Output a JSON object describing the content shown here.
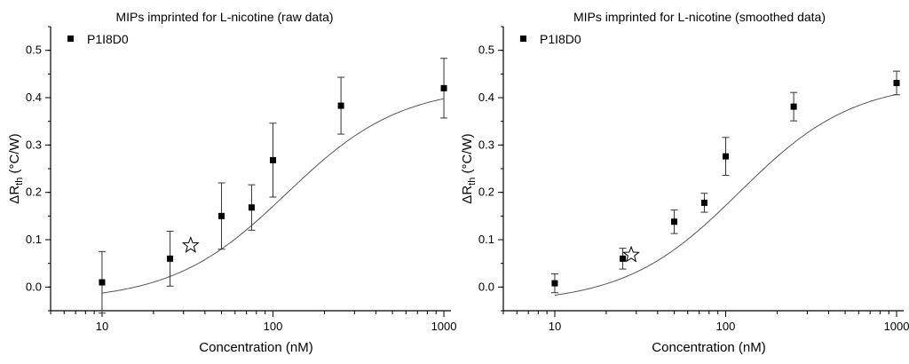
{
  "chart_data": [
    {
      "type": "scatter",
      "title": "MIPs imprinted for L-nicotine (raw data)",
      "xlabel": "Concentration (nM)",
      "ylabel_main": "ΔR",
      "ylabel_sub": "th",
      "ylabel_unit": " (°C/W)",
      "xscale": "log",
      "xlim": [
        5,
        1100
      ],
      "ylim": [
        -0.05,
        0.55
      ],
      "xticks": [
        10,
        100,
        1000
      ],
      "xtick_labels": [
        "10",
        "100",
        "1000"
      ],
      "yticks": [
        0.0,
        0.1,
        0.2,
        0.3,
        0.4,
        0.5
      ],
      "ytick_labels": [
        "0.0",
        "0.1",
        "0.2",
        "0.3",
        "0.4",
        "0.5"
      ],
      "legend": "P1I8D0",
      "series": [
        {
          "name": "P1I8D0",
          "x": [
            10,
            25,
            50,
            75,
            100,
            250,
            1000
          ],
          "y": [
            0.01,
            0.06,
            0.15,
            0.168,
            0.268,
            0.383,
            0.42
          ],
          "err": [
            0.065,
            0.058,
            0.07,
            0.048,
            0.078,
            0.06,
            0.063
          ]
        }
      ],
      "fit": {
        "bottom": -0.03,
        "top": 0.425,
        "ec50": 120,
        "hill": 1.3
      },
      "star": {
        "x": 33,
        "y": 0.088
      }
    },
    {
      "type": "scatter",
      "title": "MIPs imprinted for L-nicotine (smoothed data)",
      "xlabel": "Concentration (nM)",
      "ylabel_main": "ΔR",
      "ylabel_sub": "th",
      "ylabel_unit": " (°C/W)",
      "xscale": "log",
      "xlim": [
        5,
        1100
      ],
      "ylim": [
        -0.05,
        0.55
      ],
      "xticks": [
        10,
        100,
        1000
      ],
      "xtick_labels": [
        "10",
        "100",
        "1000"
      ],
      "yticks": [
        0.0,
        0.1,
        0.2,
        0.3,
        0.4,
        0.5
      ],
      "ytick_labels": [
        "0.0",
        "0.1",
        "0.2",
        "0.3",
        "0.4",
        "0.5"
      ],
      "legend": "P1I8D0",
      "series": [
        {
          "name": "P1I8D0",
          "x": [
            10,
            25,
            50,
            75,
            100,
            250,
            1000
          ],
          "y": [
            0.008,
            0.06,
            0.138,
            0.178,
            0.276,
            0.381,
            0.431
          ],
          "err": [
            0.02,
            0.022,
            0.025,
            0.02,
            0.04,
            0.03,
            0.025
          ]
        }
      ],
      "fit": {
        "bottom": -0.035,
        "top": 0.435,
        "ec50": 120,
        "hill": 1.3
      },
      "star": {
        "x": 28,
        "y": 0.068
      }
    }
  ]
}
